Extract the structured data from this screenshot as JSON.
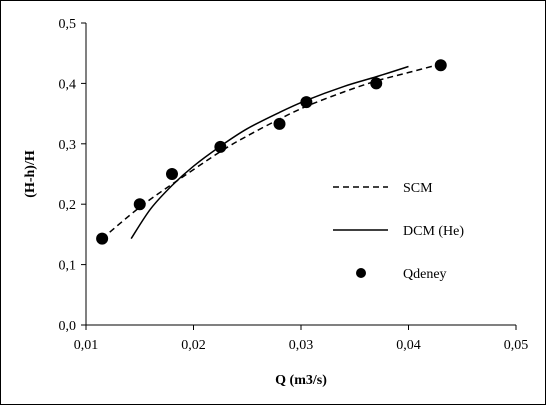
{
  "chart_data": {
    "type": "line",
    "xlabel": "Q (m3/s)",
    "ylabel": "(H-h)/H",
    "xlim": [
      0.01,
      0.05
    ],
    "ylim": [
      0.0,
      0.5
    ],
    "x_ticks": [
      0.01,
      0.02,
      0.03,
      0.04,
      0.05
    ],
    "y_ticks": [
      0.0,
      0.1,
      0.2,
      0.3,
      0.4,
      0.5
    ],
    "x_tick_labels": [
      "0,01",
      "0,02",
      "0,03",
      "0,04",
      "0,05"
    ],
    "y_tick_labels": [
      "0,0",
      "0,1",
      "0,2",
      "0,3",
      "0,4",
      "0,5"
    ],
    "grid": false,
    "legend_position": "right",
    "series": [
      {
        "name": "SCM",
        "style": "dashed",
        "color": "#000000",
        "x": [
          0.0115,
          0.015,
          0.018,
          0.0225,
          0.025,
          0.028,
          0.0305,
          0.034,
          0.037,
          0.04,
          0.043
        ],
        "y": [
          0.143,
          0.195,
          0.233,
          0.287,
          0.313,
          0.341,
          0.362,
          0.386,
          0.404,
          0.418,
          0.432
        ]
      },
      {
        "name": "DCM (He)",
        "style": "solid",
        "color": "#000000",
        "x": [
          0.0142,
          0.016,
          0.018,
          0.02,
          0.0225,
          0.025,
          0.028,
          0.0305,
          0.034,
          0.037,
          0.04
        ],
        "y": [
          0.143,
          0.192,
          0.231,
          0.263,
          0.296,
          0.325,
          0.352,
          0.372,
          0.395,
          0.411,
          0.428
        ]
      },
      {
        "name": "Qdeney",
        "style": "markers",
        "color": "#000000",
        "x": [
          0.0115,
          0.015,
          0.018,
          0.0225,
          0.028,
          0.0305,
          0.037,
          0.043
        ],
        "y": [
          0.143,
          0.2,
          0.25,
          0.295,
          0.333,
          0.369,
          0.4,
          0.43
        ]
      }
    ]
  }
}
